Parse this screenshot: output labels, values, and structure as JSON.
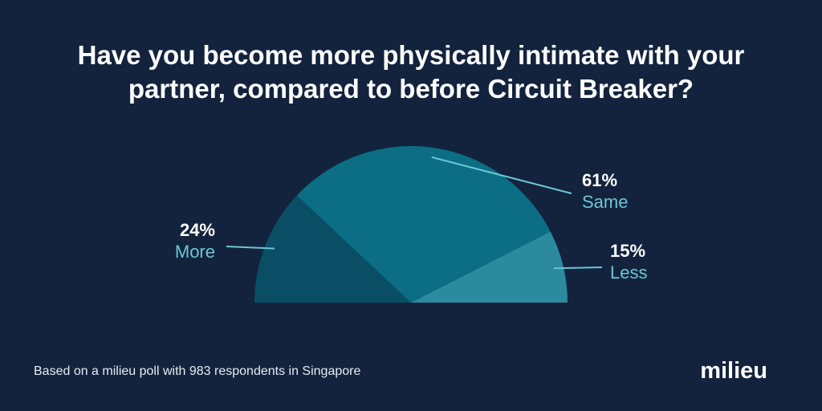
{
  "title_lines": [
    "Have you become more physically intimate with your",
    "partner, compared to before Circuit Breaker?"
  ],
  "chart_data": {
    "type": "pie",
    "variant": "semicircle",
    "title": "Have you become more physically intimate with your partner, compared to before Circuit Breaker?",
    "slices": [
      {
        "label": "More",
        "value": 24,
        "value_label": "24%",
        "color": "#0a4e66"
      },
      {
        "label": "Same",
        "value": 61,
        "value_label": "61%",
        "color": "#0c6e84"
      },
      {
        "label": "Less",
        "value": 15,
        "value_label": "15%",
        "color": "#2b8a9d"
      }
    ],
    "label_value_color": "#ffffff",
    "label_name_color": "#6cc6d6"
  },
  "footer": "Based on a milieu poll with 983 respondents in Singapore",
  "logo": {
    "text": "milieu",
    "dot_color": "#3fa7e0"
  },
  "background": "#13233d"
}
